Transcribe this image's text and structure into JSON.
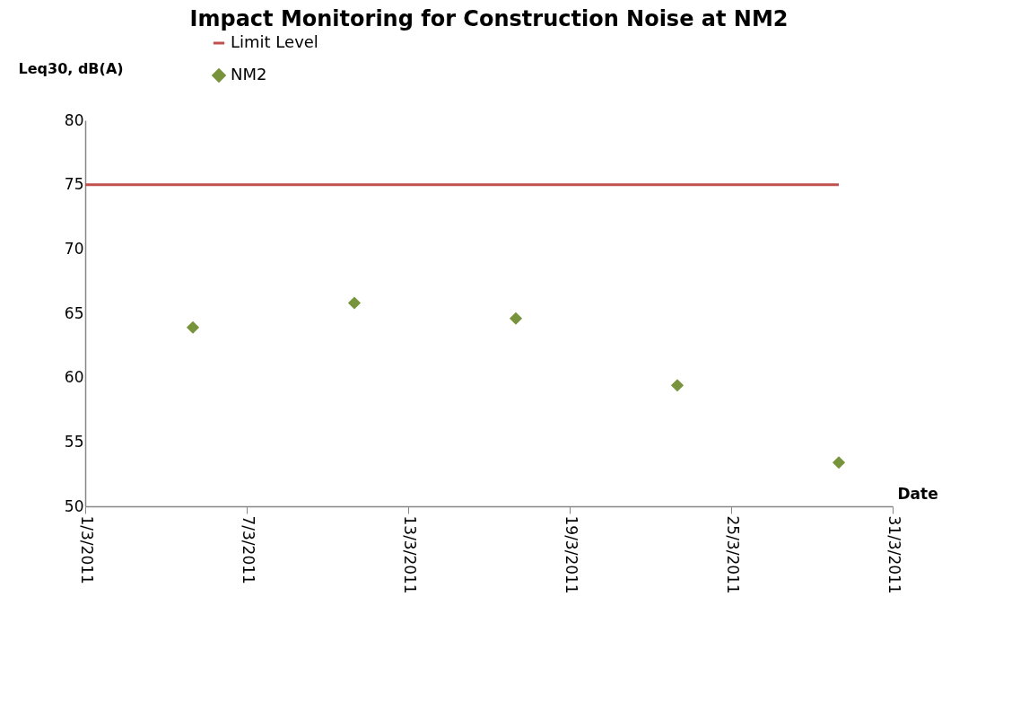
{
  "chart_data": {
    "type": "scatter",
    "title": "Impact Monitoring for Construction Noise at NM2",
    "xlabel": "Date",
    "ylabel": "Leq30, dB(A)",
    "x": [
      "2011-03-05",
      "2011-03-11",
      "2011-03-17",
      "2011-03-23",
      "2011-03-29"
    ],
    "series": [
      {
        "name": "Limit Level",
        "type": "line",
        "color": "#c0504d",
        "x": [
          "2011-03-01",
          "2011-03-29"
        ],
        "values": [
          75,
          75
        ],
        "marker": "none"
      },
      {
        "name": "NM2",
        "color": "#77933c",
        "values": [
          63.9,
          65.8,
          64.6,
          59.4,
          53.4
        ],
        "marker": "diamond"
      }
    ],
    "xlim": [
      "2011-03-01",
      "2011-03-31"
    ],
    "xticks": [
      {
        "value": "2011-03-01",
        "label": "1/3/2011"
      },
      {
        "value": "2011-03-07",
        "label": "7/3/2011"
      },
      {
        "value": "2011-03-13",
        "label": "13/3/2011"
      },
      {
        "value": "2011-03-19",
        "label": "19/3/2011"
      },
      {
        "value": "2011-03-25",
        "label": "25/3/2011"
      },
      {
        "value": "2011-03-31",
        "label": "31/3/2011"
      }
    ],
    "ylim": [
      50,
      80
    ],
    "yticks": [
      50,
      55,
      60,
      65,
      70,
      75,
      80
    ],
    "grid": false,
    "legend": "top left"
  }
}
